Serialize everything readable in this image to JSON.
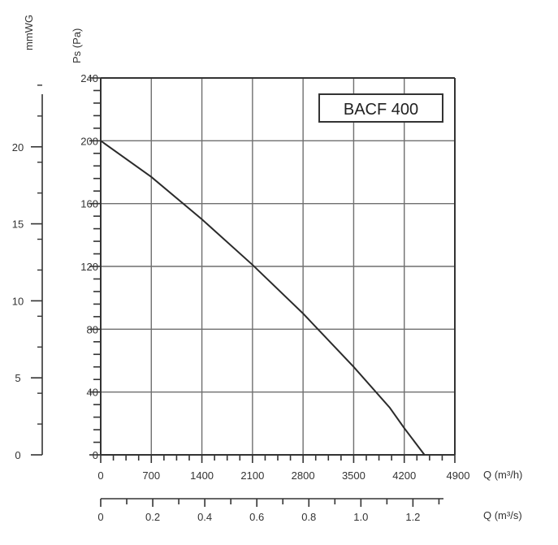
{
  "chart_data": {
    "type": "line",
    "title": "",
    "model_label": "BACF 400",
    "x_primary": {
      "label": "Q (m³/h)",
      "range": [
        0,
        4900
      ],
      "ticks": [
        0,
        700,
        1400,
        2100,
        2800,
        3500,
        4200
      ],
      "end_label": "4900"
    },
    "x_secondary": {
      "label": "Q (m³/s)",
      "range": [
        0,
        1.3611
      ],
      "ticks": [
        "0",
        "0.2",
        "0.4",
        "0.6",
        "0.8",
        "1.0",
        "1.2"
      ],
      "tick_values": [
        0,
        0.2,
        0.4,
        0.6,
        0.8,
        1.0,
        1.2
      ]
    },
    "y_primary": {
      "label": "Ps (Pa)",
      "range": [
        0,
        240
      ],
      "ticks": [
        0,
        40,
        80,
        120,
        160,
        200,
        240
      ]
    },
    "y_secondary": {
      "label": "mmWG",
      "range": [
        0,
        24.47
      ],
      "ticks": [
        0,
        5,
        10,
        15,
        20
      ]
    },
    "grid": true,
    "series": [
      {
        "x": [
          0,
          700,
          1400,
          2100,
          2800,
          3500,
          4000,
          4200,
          4480
        ],
        "y": [
          200,
          177,
          150,
          121,
          90,
          56,
          30,
          17,
          0
        ]
      }
    ]
  }
}
